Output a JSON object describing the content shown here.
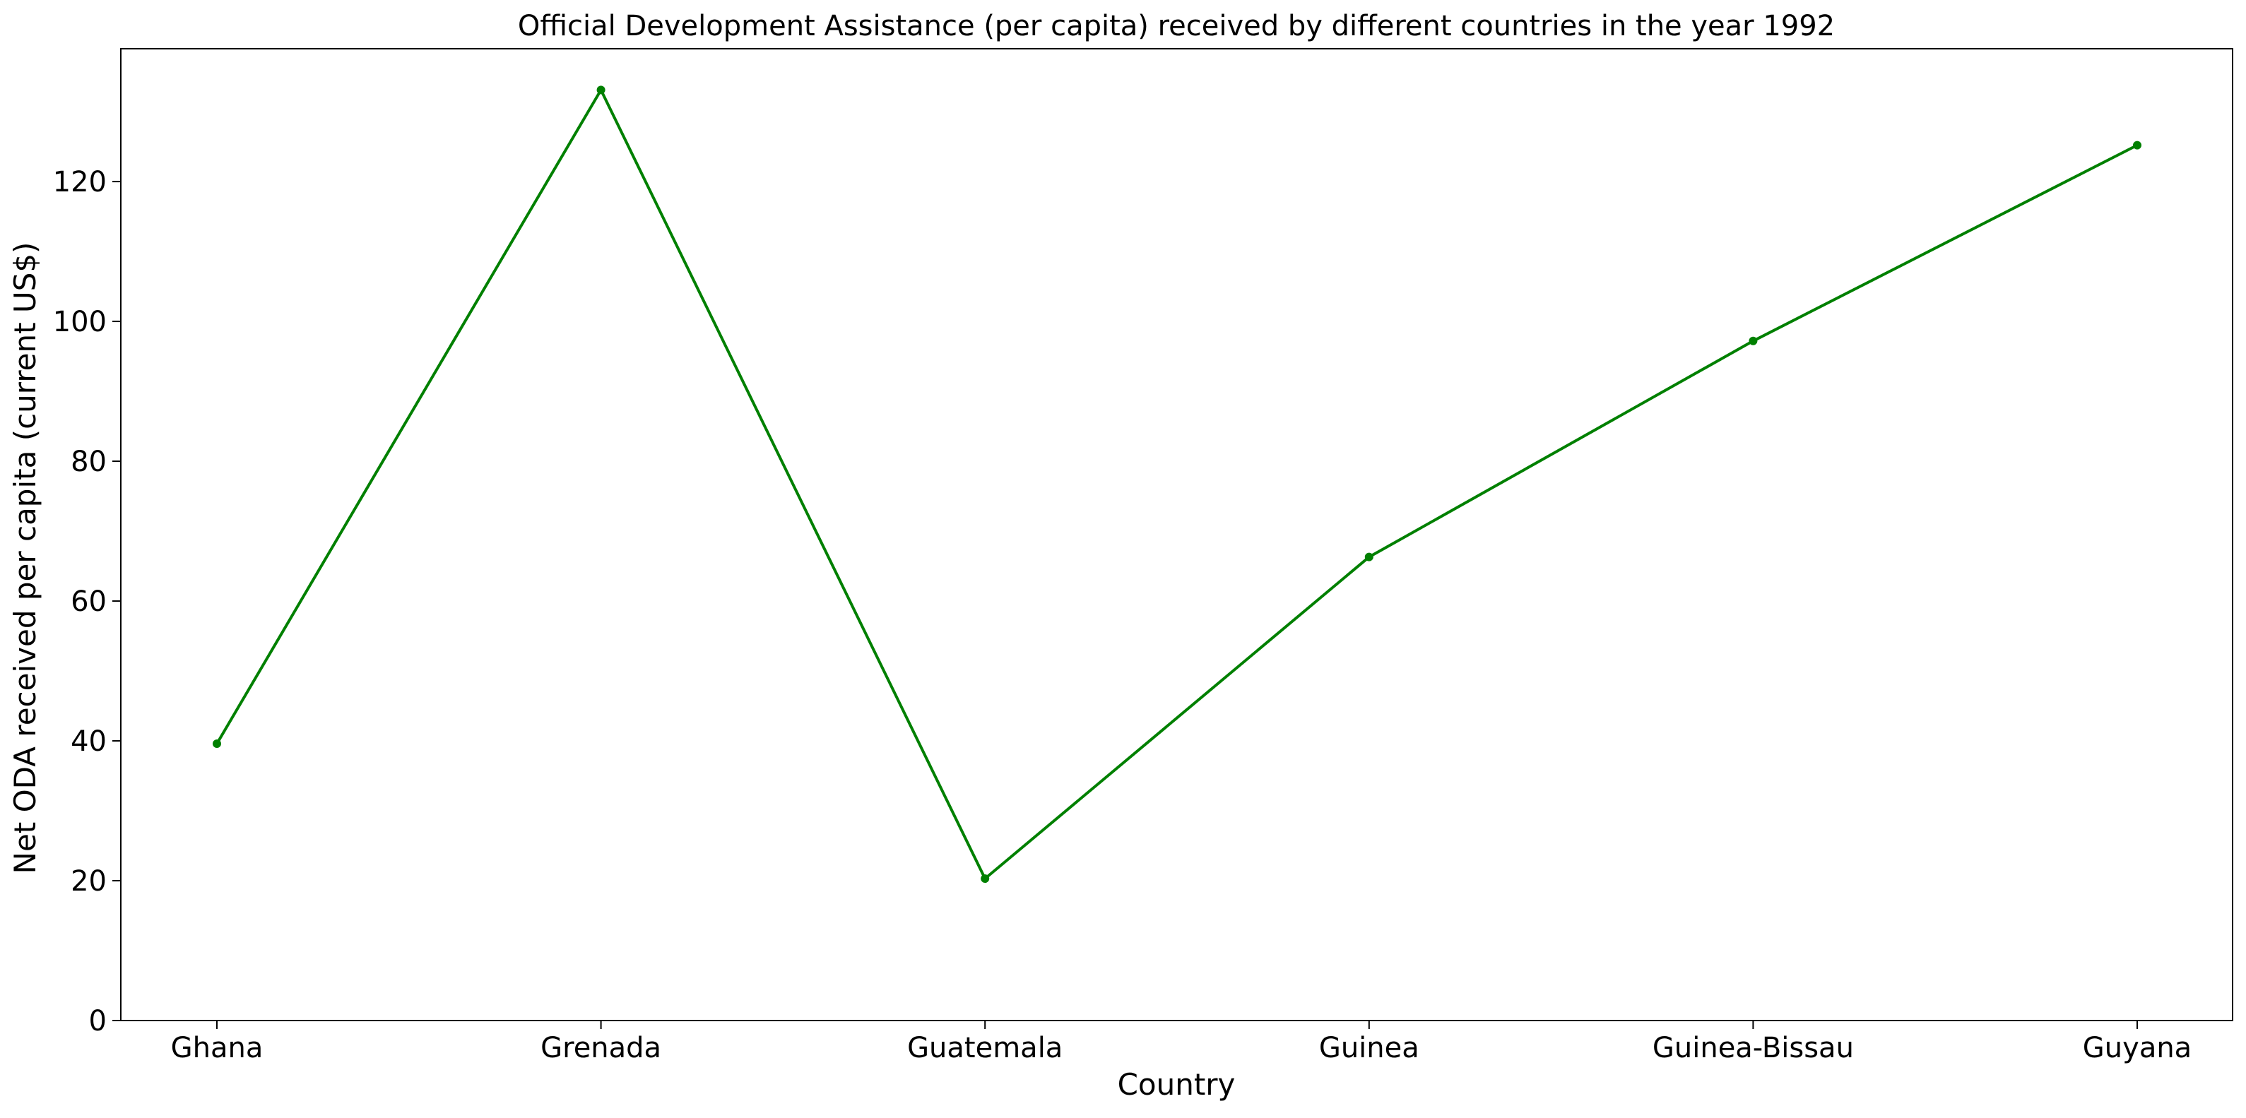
{
  "chart_data": {
    "type": "line",
    "title": "Official Development Assistance (per capita) received by different countries in the year 1992",
    "xlabel": "Country",
    "ylabel": "Net ODA received per capita (current US$)",
    "categories": [
      "Ghana",
      "Grenada",
      "Guatemala",
      "Guinea",
      "Guinea-Bissau",
      "Guyana"
    ],
    "series": [
      {
        "values": [
          39.6,
          133.1,
          20.3,
          66.3,
          97.2,
          125.2
        ],
        "color": "#008000",
        "marker": "circle"
      }
    ],
    "ylim": [
      0,
      139
    ],
    "yticks": [
      0,
      20,
      40,
      60,
      80,
      100,
      120
    ],
    "grid": false,
    "legend": "none"
  }
}
